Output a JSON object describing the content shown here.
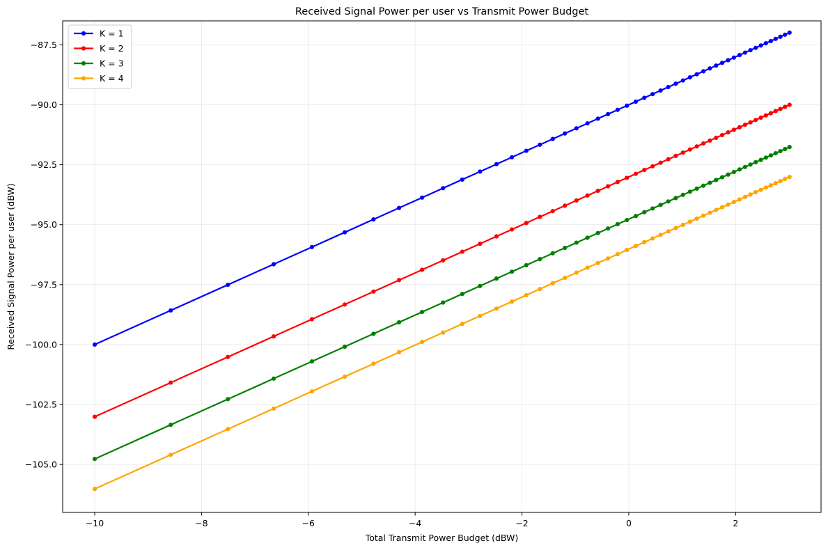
{
  "chart_data": {
    "type": "line",
    "title": "Received Signal Power per user vs Transmit Power Budget",
    "xlabel": "Total Transmit Power Budget (dBW)",
    "ylabel": "Received Signal Power per user (dBW)",
    "xlim": [
      -10.6,
      3.6
    ],
    "ylim": [
      -107.0,
      -86.5
    ],
    "x_ticks": [
      -10,
      -8,
      -6,
      -4,
      -2,
      0,
      2
    ],
    "x_tick_labels": [
      "−10",
      "−8",
      "−6",
      "−4",
      "−2",
      "0",
      "2"
    ],
    "y_ticks": [
      -105.0,
      -102.5,
      -100.0,
      -97.5,
      -95.0,
      -92.5,
      -90.0,
      -87.5
    ],
    "y_tick_labels": [
      "−105.0",
      "−102.5",
      "−100.0",
      "−97.5",
      "−95.0",
      "−92.5",
      "−90.0",
      "−87.5"
    ],
    "grid": true,
    "legend_position": "top-left",
    "x_linear_min": 0.1,
    "x_linear_max": 2.0,
    "x_num_points": 50,
    "series": [
      {
        "name": "K = 1",
        "color": "#0000ff",
        "offset_db": -90.0
      },
      {
        "name": "K = 2",
        "color": "#ff0000",
        "offset_db": -93.01
      },
      {
        "name": "K = 3",
        "color": "#008000",
        "offset_db": -94.77
      },
      {
        "name": "K = 4",
        "color": "#ffa500",
        "offset_db": -96.02
      }
    ]
  }
}
